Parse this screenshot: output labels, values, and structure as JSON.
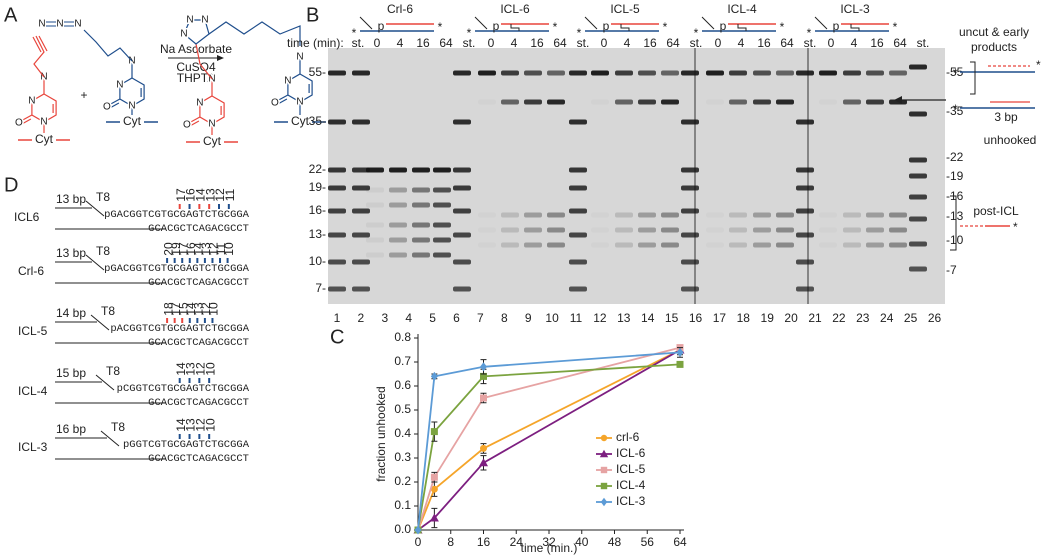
{
  "panel_labels": {
    "a": "A",
    "b": "B",
    "c": "C",
    "d": "D"
  },
  "scheme": {
    "reagents": [
      "Na Ascorbate",
      "CuSO4",
      "THPTA"
    ],
    "plus": "+",
    "strand": "Cyt",
    "atoms": [
      "N",
      "N",
      "O",
      "N",
      "N",
      "N",
      "O",
      "N",
      "N",
      "N",
      "N",
      "N",
      "N",
      "O",
      "N",
      "N",
      "N",
      "O",
      "N",
      "N",
      "N",
      "N"
    ]
  },
  "gel": {
    "groups": [
      "Crl-6",
      "ICL-6",
      "ICL-5",
      "ICL-4",
      "ICL-3"
    ],
    "time_header": "time (min):",
    "times": [
      "st.",
      "0",
      "4",
      "16",
      "64",
      "st.",
      "0",
      "4",
      "16",
      "64",
      "st.",
      "0",
      "4",
      "16",
      "64",
      "st.",
      "0",
      "4",
      "16",
      "64",
      "st.",
      "0",
      "4",
      "16",
      "64",
      "st."
    ],
    "lanes": [
      "1",
      "2",
      "3",
      "4",
      "5",
      "6",
      "7",
      "8",
      "9",
      "10",
      "11",
      "12",
      "13",
      "14",
      "15",
      "16",
      "17",
      "18",
      "19",
      "20",
      "21",
      "22",
      "23",
      "24",
      "25",
      "26"
    ],
    "left_markers": [
      "55-",
      "35-",
      "22-",
      "19-",
      "16-",
      "13-",
      "10-",
      "7-"
    ],
    "right_markers": [
      "-55",
      "-35",
      "-22",
      "-19",
      "-16",
      "-13",
      "-10",
      "-7"
    ],
    "phosphate": "p",
    "label": "*",
    "annotations": {
      "uncut": [
        "uncut & early",
        "products"
      ],
      "three_bp": "3 bp",
      "unhooked": "unhooked",
      "post_icl": "post-ICL"
    }
  },
  "substrates": [
    {
      "name": "ICL6",
      "length": "13 bp",
      "loop": "T8",
      "top": "pGACGGTCGTGCGAGTCTGCGGA",
      "bottom": "GCACGCTCAGACGCCT",
      "positions": [
        "17",
        "16",
        "14",
        "13",
        "12",
        "11"
      ]
    },
    {
      "name": "Crl-6",
      "length": "13 bp",
      "loop": "T8",
      "top": "pGACGGTCGTGCGAGTCTGCGGA",
      "bottom": "GCACGCTCAGACGCCT",
      "positions": [
        "20",
        "19",
        "17",
        "16",
        "14",
        "13",
        "12",
        "11",
        "10"
      ]
    },
    {
      "name": "ICL-5",
      "length": "14 bp",
      "loop": "T8",
      "top": "pACGGTCGTGCGAGTCTGCGGA",
      "bottom": "GCACGCTCAGACGCCT",
      "positions": [
        "18",
        "17",
        "15",
        "14",
        "13",
        "12",
        "10"
      ]
    },
    {
      "name": "ICL-4",
      "length": "15 bp",
      "loop": "T8",
      "top": "pCGGTCGTGCGAGTCTGCGGA",
      "bottom": "GCACGCTCAGACGCCT",
      "positions": [
        "14",
        "13",
        "12",
        "10"
      ]
    },
    {
      "name": "ICL-3",
      "length": "16 bp",
      "loop": "T8",
      "top": "pGGTCGTGCGAGTCTGCGGA",
      "bottom": "GCACGCTCAGACGCCT",
      "positions": [
        "14",
        "13",
        "12",
        "10"
      ]
    }
  ],
  "chart_data": {
    "type": "line",
    "x_label": "time (min.)",
    "y_label": "fraction unhooked",
    "x": [
      0,
      4,
      16,
      64
    ],
    "xlim": [
      0,
      64
    ],
    "xticks": [
      0,
      8,
      16,
      24,
      32,
      40,
      48,
      56,
      64
    ],
    "ylim": [
      0,
      0.8
    ],
    "yticks": [
      {
        "value": 0,
        "label": "0.0"
      },
      0.1,
      0.2,
      0.3,
      0.4,
      0.5,
      0.6,
      0.7,
      0.8
    ],
    "grid": false,
    "legend": "lower right",
    "series": [
      {
        "name": "crl-6",
        "color": "#f5a52a",
        "marker": "circle",
        "values": [
          0,
          0.17,
          0.34,
          0.75
        ],
        "errors": [
          0,
          0.03,
          0.02,
          0.01
        ]
      },
      {
        "name": "ICL-6",
        "color": "#7d1f80",
        "marker": "triangle",
        "values": [
          0,
          0.05,
          0.28,
          0.75
        ],
        "errors": [
          0,
          0.04,
          0.03,
          0.02
        ]
      },
      {
        "name": "ICL-5",
        "color": "#e6a3a3",
        "marker": "square",
        "values": [
          0,
          0.22,
          0.55,
          0.76
        ],
        "errors": [
          0,
          0.02,
          0.02,
          0.01
        ]
      },
      {
        "name": "ICL-4",
        "color": "#7ba33f",
        "marker": "square",
        "values": [
          0,
          0.41,
          0.64,
          0.69
        ],
        "errors": [
          0,
          0.04,
          0.03,
          0.01
        ]
      },
      {
        "name": "ICL-3",
        "color": "#5c9bd6",
        "marker": "diamond",
        "values": [
          0,
          0.64,
          0.68,
          0.74
        ],
        "errors": [
          0,
          0.01,
          0.03,
          0.02
        ]
      }
    ]
  }
}
